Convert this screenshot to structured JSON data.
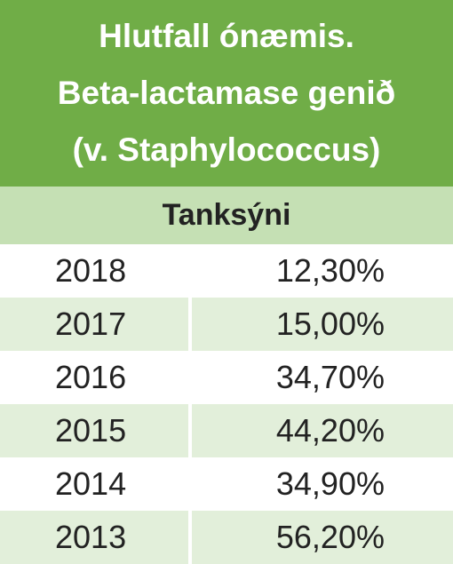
{
  "header": {
    "title_lines": [
      "Hlutfall ónæmis.",
      "Beta-lactamase genið",
      "(v. Staphylococcus)"
    ],
    "subtitle": "Tanksýni"
  },
  "table": {
    "rows": [
      [
        "2018",
        "12,30%"
      ],
      [
        "2017",
        "15,00%"
      ],
      [
        "2016",
        "34,70%"
      ],
      [
        "2015",
        "44,20%"
      ],
      [
        "2014",
        "34,90%"
      ],
      [
        "2013",
        "56,20%"
      ]
    ]
  }
}
